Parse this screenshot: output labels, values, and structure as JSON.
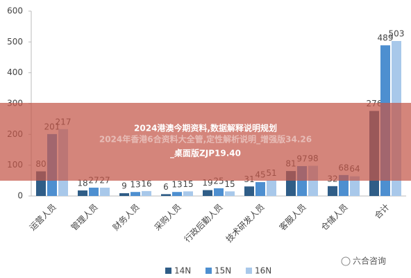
{
  "chart_data": {
    "type": "bar",
    "categories": [
      "运营人员",
      "管理人员",
      "财务人员",
      "采购人员",
      "行政后勤人员",
      "技术研发人员",
      "客服人员",
      "仓储人员",
      "合计"
    ],
    "series": [
      {
        "name": "14N",
        "color": "#2f5d87",
        "values": [
          80,
          18,
          9,
          6,
          19,
          31,
          81,
          32,
          276
        ]
      },
      {
        "name": "15N",
        "color": "#4d8fd0",
        "values": [
          201,
          27,
          13,
          13,
          25,
          45,
          97,
          68,
          489
        ]
      },
      {
        "name": "16N",
        "color": "#a8c8ea",
        "values": [
          217,
          27,
          16,
          15,
          15,
          51,
          98,
          64,
          503
        ]
      }
    ],
    "ylim": [
      0,
      600
    ],
    "yticks": [
      0,
      100,
      200,
      300,
      400,
      500,
      600
    ],
    "grid": false,
    "legend": "bottom"
  },
  "overlay": {
    "title_lines": [
      "2024港澳今期资料,数据解释说明规划",
      "_桌面版ZJP19.40"
    ],
    "subtitle": "2024年香港6合资料大全管,定性解析说明_增强版34.26",
    "watermark": "六合咨询"
  }
}
